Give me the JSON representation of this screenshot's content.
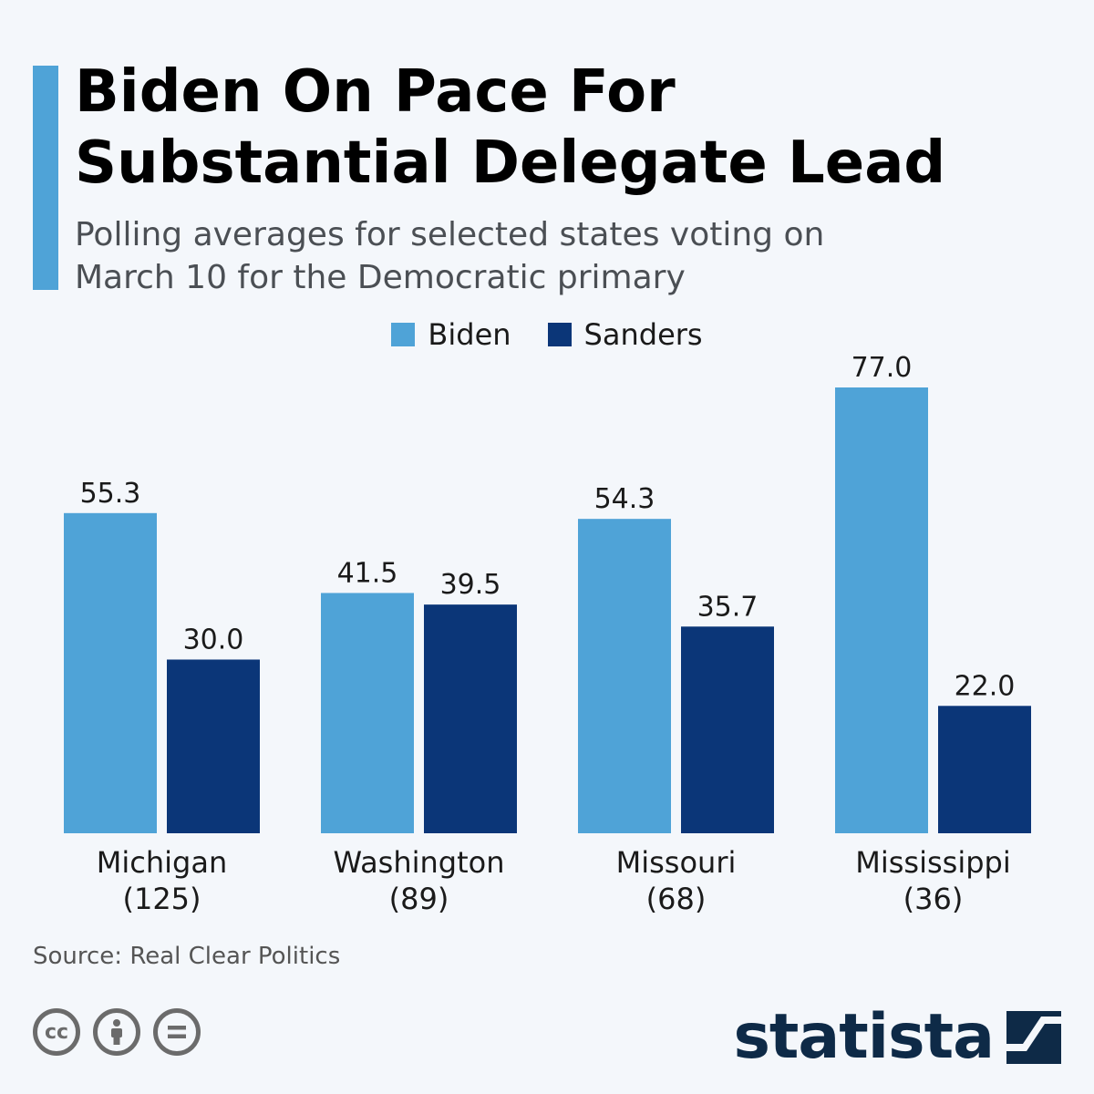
{
  "header": {
    "title_line1": "Biden On Pace For",
    "title_line2": "Substantial Delegate Lead",
    "subtitle_line1": "Polling averages for selected states voting on",
    "subtitle_line2": "March 10 for the Democratic primary",
    "accent_color": "#4fa3d7"
  },
  "legend": {
    "items": [
      {
        "label": "Biden",
        "color": "#4fa3d7"
      },
      {
        "label": "Sanders",
        "color": "#0b3678"
      }
    ]
  },
  "chart_data": {
    "type": "bar",
    "title": "Biden On Pace For Substantial Delegate Lead",
    "subtitle": "Polling averages for selected states voting on March 10 for the Democratic primary",
    "categories": [
      "Michigan (125)",
      "Washington (89)",
      "Missouri (68)",
      "Mississippi (36)"
    ],
    "category_lines": [
      [
        "Michigan",
        "(125)"
      ],
      [
        "Washington",
        "(89)"
      ],
      [
        "Missouri",
        "(68)"
      ],
      [
        "Mississippi",
        "(36)"
      ]
    ],
    "series": [
      {
        "name": "Biden",
        "color": "#4fa3d7",
        "values": [
          55.3,
          41.5,
          54.3,
          77.0
        ],
        "labels": [
          "55.3",
          "41.5",
          "54.3",
          "77.0"
        ]
      },
      {
        "name": "Sanders",
        "color": "#0b3678",
        "values": [
          30.0,
          39.5,
          35.7,
          22.0
        ],
        "labels": [
          "30.0",
          "39.5",
          "35.7",
          "22.0"
        ]
      }
    ],
    "ylim": [
      0,
      77
    ],
    "grid": false,
    "legend_position": "top-center"
  },
  "footer": {
    "source": "Source: Real Clear Politics",
    "brand": "statista",
    "brand_color": "#0e2a47",
    "license_icons": [
      "cc-icon",
      "attribution-icon",
      "no-derivatives-icon"
    ]
  }
}
